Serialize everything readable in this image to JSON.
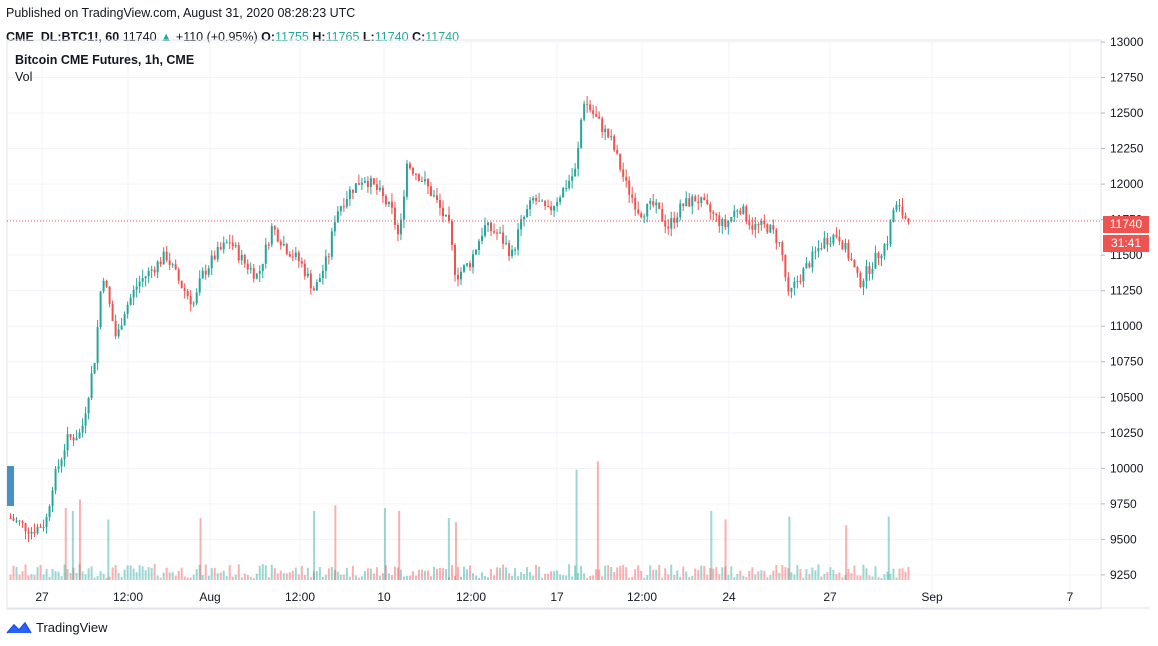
{
  "header": {
    "published": "Published on TradingView.com, August 31, 2020 08:28:23 UTC",
    "symbol": "CME_DL:BTC1!, 60",
    "last": "11740",
    "arrow": "▲",
    "change": "+110 (+0.95%)",
    "o_label": "O:",
    "o_value": "11755",
    "h_label": "H:",
    "h_value": "11765",
    "l_label": "L:",
    "l_value": "11740",
    "c_label": "C:",
    "c_value": "11740"
  },
  "chart_title": "Bitcoin CME Futures, 1h, CME",
  "vol_label": "Vol",
  "price_tag": "11740",
  "countdown_tag": "31:41",
  "footer": {
    "brand": "TradingView"
  },
  "colors": {
    "up": "#26a69a",
    "down": "#ef5350",
    "grid": "#f0f3fa",
    "axis_text": "#131722"
  },
  "chart_data": {
    "type": "candlestick",
    "title": "Bitcoin CME Futures, 1h, CME",
    "ylim": [
      9200,
      13000
    ],
    "y_ticks": [
      9250,
      9500,
      9750,
      10000,
      10250,
      10500,
      10750,
      11000,
      11250,
      11500,
      11750,
      12000,
      12250,
      12500,
      12750,
      13000
    ],
    "x_ticks": [
      "27",
      "12:00",
      "Aug",
      "12:00",
      "10",
      "12:00",
      "17",
      "12:00",
      "24",
      "27",
      "Sep",
      "7"
    ],
    "last_price": 11740,
    "close_path": [
      [
        0,
        9650
      ],
      [
        3,
        9560
      ],
      [
        5,
        9620
      ],
      [
        6,
        9900
      ],
      [
        8,
        10200
      ],
      [
        10,
        10250
      ],
      [
        12,
        10800
      ],
      [
        13,
        11400
      ],
      [
        15,
        10900
      ],
      [
        16,
        11100
      ],
      [
        18,
        11300
      ],
      [
        20,
        11400
      ],
      [
        22,
        11500
      ],
      [
        24,
        11300
      ],
      [
        26,
        11150
      ],
      [
        27,
        11350
      ],
      [
        29,
        11500
      ],
      [
        31,
        11600
      ],
      [
        33,
        11450
      ],
      [
        35,
        11350
      ],
      [
        37,
        11700
      ],
      [
        39,
        11550
      ],
      [
        41,
        11450
      ],
      [
        43,
        11250
      ],
      [
        45,
        11500
      ],
      [
        46,
        11800
      ],
      [
        48,
        11950
      ],
      [
        50,
        12050
      ],
      [
        52,
        11950
      ],
      [
        54,
        11800
      ],
      [
        55,
        11600
      ],
      [
        56,
        12150
      ],
      [
        58,
        12050
      ],
      [
        60,
        11900
      ],
      [
        62,
        11700
      ],
      [
        63,
        11350
      ],
      [
        65,
        11450
      ],
      [
        67,
        11700
      ],
      [
        69,
        11650
      ],
      [
        71,
        11500
      ],
      [
        72,
        11700
      ],
      [
        74,
        11900
      ],
      [
        76,
        11800
      ],
      [
        78,
        11950
      ],
      [
        80,
        12100
      ],
      [
        81,
        12600
      ],
      [
        83,
        12450
      ],
      [
        85,
        12300
      ],
      [
        87,
        12000
      ],
      [
        89,
        11800
      ],
      [
        91,
        11850
      ],
      [
        93,
        11700
      ],
      [
        95,
        11850
      ],
      [
        97,
        11900
      ],
      [
        99,
        11800
      ],
      [
        101,
        11700
      ],
      [
        103,
        11850
      ],
      [
        105,
        11700
      ],
      [
        107,
        11700
      ],
      [
        108,
        11650
      ],
      [
        109,
        11550
      ],
      [
        110,
        11200
      ],
      [
        111,
        11300
      ],
      [
        113,
        11450
      ],
      [
        115,
        11600
      ],
      [
        117,
        11650
      ],
      [
        118,
        11550
      ],
      [
        119,
        11450
      ],
      [
        120,
        11300
      ],
      [
        122,
        11450
      ],
      [
        124,
        11600
      ],
      [
        125,
        11850
      ],
      [
        126,
        11800
      ],
      [
        127,
        11740
      ]
    ],
    "volume_spikes": [
      [
        8,
        9720
      ],
      [
        9,
        9700
      ],
      [
        10,
        9780
      ],
      [
        14,
        9640
      ],
      [
        27,
        9650
      ],
      [
        43,
        9700
      ],
      [
        46,
        9740
      ],
      [
        53,
        9720
      ],
      [
        55,
        9700
      ],
      [
        62,
        9650
      ],
      [
        63,
        9620
      ],
      [
        80,
        9990
      ],
      [
        83,
        10050
      ],
      [
        99,
        9700
      ],
      [
        101,
        9640
      ],
      [
        110,
        9660
      ],
      [
        118,
        9600
      ],
      [
        124,
        9660
      ]
    ]
  }
}
